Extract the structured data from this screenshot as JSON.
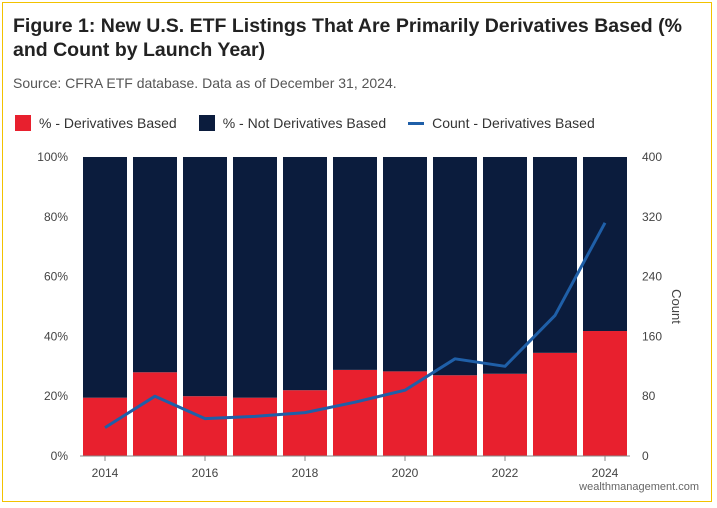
{
  "header": {
    "title": "Figure 1: New U.S. ETF Listings That Are Primarily Derivatives Based (% and Count by Launch Year)",
    "subtitle": "Source: CFRA ETF database. Data as of December 31, 2024."
  },
  "credit": "wealthmanagement.com",
  "chart_data": {
    "type": "bar",
    "stacked": true,
    "x": [
      2014,
      2015,
      2016,
      2017,
      2018,
      2019,
      2020,
      2021,
      2022,
      2023,
      2024
    ],
    "x_tick_labels": [
      "2014",
      "2016",
      "2018",
      "2020",
      "2022",
      "2024"
    ],
    "series": [
      {
        "name": "% - Derivatives Based",
        "kind": "bar",
        "axis": "left",
        "color": "#e8202e",
        "values": [
          19.5,
          28,
          20,
          19.5,
          22,
          28.8,
          28.3,
          27,
          27.5,
          34.5,
          41.8
        ]
      },
      {
        "name": "% - Not Derivatives Based",
        "kind": "bar",
        "axis": "left",
        "color": "#0b1c3d",
        "values": [
          80.5,
          72,
          80,
          80.5,
          78,
          71.2,
          71.7,
          73,
          72.5,
          65.5,
          58.2
        ]
      },
      {
        "name": "Count - Derivatives Based",
        "kind": "line",
        "axis": "right",
        "color": "#1f5fa8",
        "values": [
          38,
          80,
          50,
          53,
          58,
          72,
          88,
          130,
          120,
          188,
          312
        ]
      }
    ],
    "y_left": {
      "min": 0,
      "max": 100,
      "ticks": [
        "0%",
        "20%",
        "40%",
        "60%",
        "80%",
        "100%"
      ]
    },
    "y_right": {
      "min": 0,
      "max": 400,
      "label": "Count",
      "ticks": [
        "0",
        "80",
        "160",
        "240",
        "320",
        "400"
      ]
    },
    "grid": false,
    "legend_position": "top-left"
  }
}
